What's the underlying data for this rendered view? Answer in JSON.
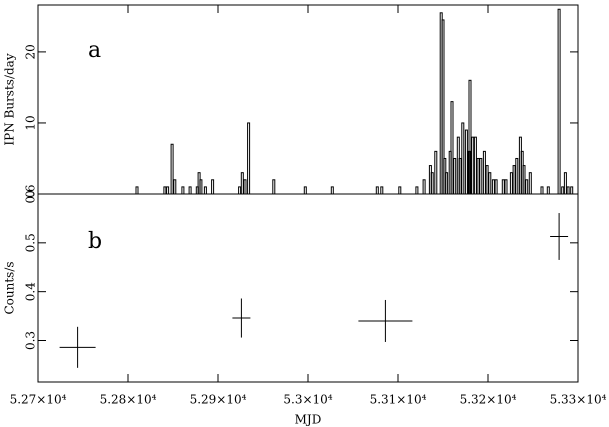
{
  "chart_data": [
    {
      "type": "bar",
      "ylabel": "IPN Bursts/day",
      "annotation": "a",
      "x": [
        52810,
        52841,
        52844,
        52849,
        52852,
        52861,
        52869,
        52877,
        52879,
        52881,
        52886,
        52894,
        52924,
        52927,
        52930,
        52934,
        52962,
        52997,
        53027,
        53077,
        53082,
        53102,
        53121,
        53129,
        53136,
        53138,
        53142,
        53148,
        53150,
        53152,
        53154,
        53158,
        53160,
        53163,
        53167,
        53169,
        53172,
        53176,
        53179,
        53180,
        53183,
        53186,
        53189,
        53192,
        53196,
        53199,
        53202,
        53206,
        53209,
        53217,
        53220,
        53226,
        53229,
        53232,
        53236,
        53238,
        53240,
        53243,
        53247,
        53260,
        53267,
        53279,
        53283,
        53286,
        53289,
        53293
      ],
      "values": [
        1,
        1,
        1,
        7,
        2,
        1,
        1,
        1,
        3,
        2,
        1,
        2,
        1,
        3,
        2,
        10,
        2,
        1,
        1,
        1,
        1,
        1,
        1,
        2,
        4,
        3,
        6,
        25.5,
        24.5,
        5,
        3,
        6,
        13,
        5,
        8,
        5,
        10,
        9,
        6,
        16,
        8,
        8,
        5,
        5,
        6,
        4,
        3,
        2,
        2,
        2,
        2,
        3,
        4,
        5,
        8,
        6,
        4,
        2,
        3,
        1,
        1,
        26,
        1,
        3,
        1,
        1
      ],
      "color": "#000000",
      "xlim": [
        52700,
        53300
      ],
      "ylim": [
        0,
        26.6
      ],
      "yticks": [
        0,
        10,
        20
      ]
    },
    {
      "type": "errorbar",
      "ylabel": "Counts/s",
      "xlabel": "MJD",
      "annotation": "b",
      "x": [
        52744,
        52926,
        53086,
        53279
      ],
      "xerr": [
        20,
        10,
        30,
        10
      ],
      "values": [
        0.286,
        0.346,
        0.34,
        0.513
      ],
      "yerr": [
        0.042,
        0.04,
        0.043,
        0.048
      ],
      "color": "#000000",
      "xlim": [
        52700,
        53300
      ],
      "ylim": [
        0.215,
        0.6
      ],
      "yticks": [
        0.3,
        0.4,
        0.5,
        0.6
      ],
      "xticks": [
        {
          "value": 52700,
          "label": "5.27×10⁴"
        },
        {
          "value": 52800,
          "label": "5.28×10⁴"
        },
        {
          "value": 52900,
          "label": "5.29×10⁴"
        },
        {
          "value": 53000,
          "label": "5.3×10⁴"
        },
        {
          "value": 53100,
          "label": "5.31×10⁴"
        },
        {
          "value": 53200,
          "label": "5.32×10⁴"
        },
        {
          "value": 53300,
          "label": "5.33×10⁴"
        }
      ]
    }
  ]
}
